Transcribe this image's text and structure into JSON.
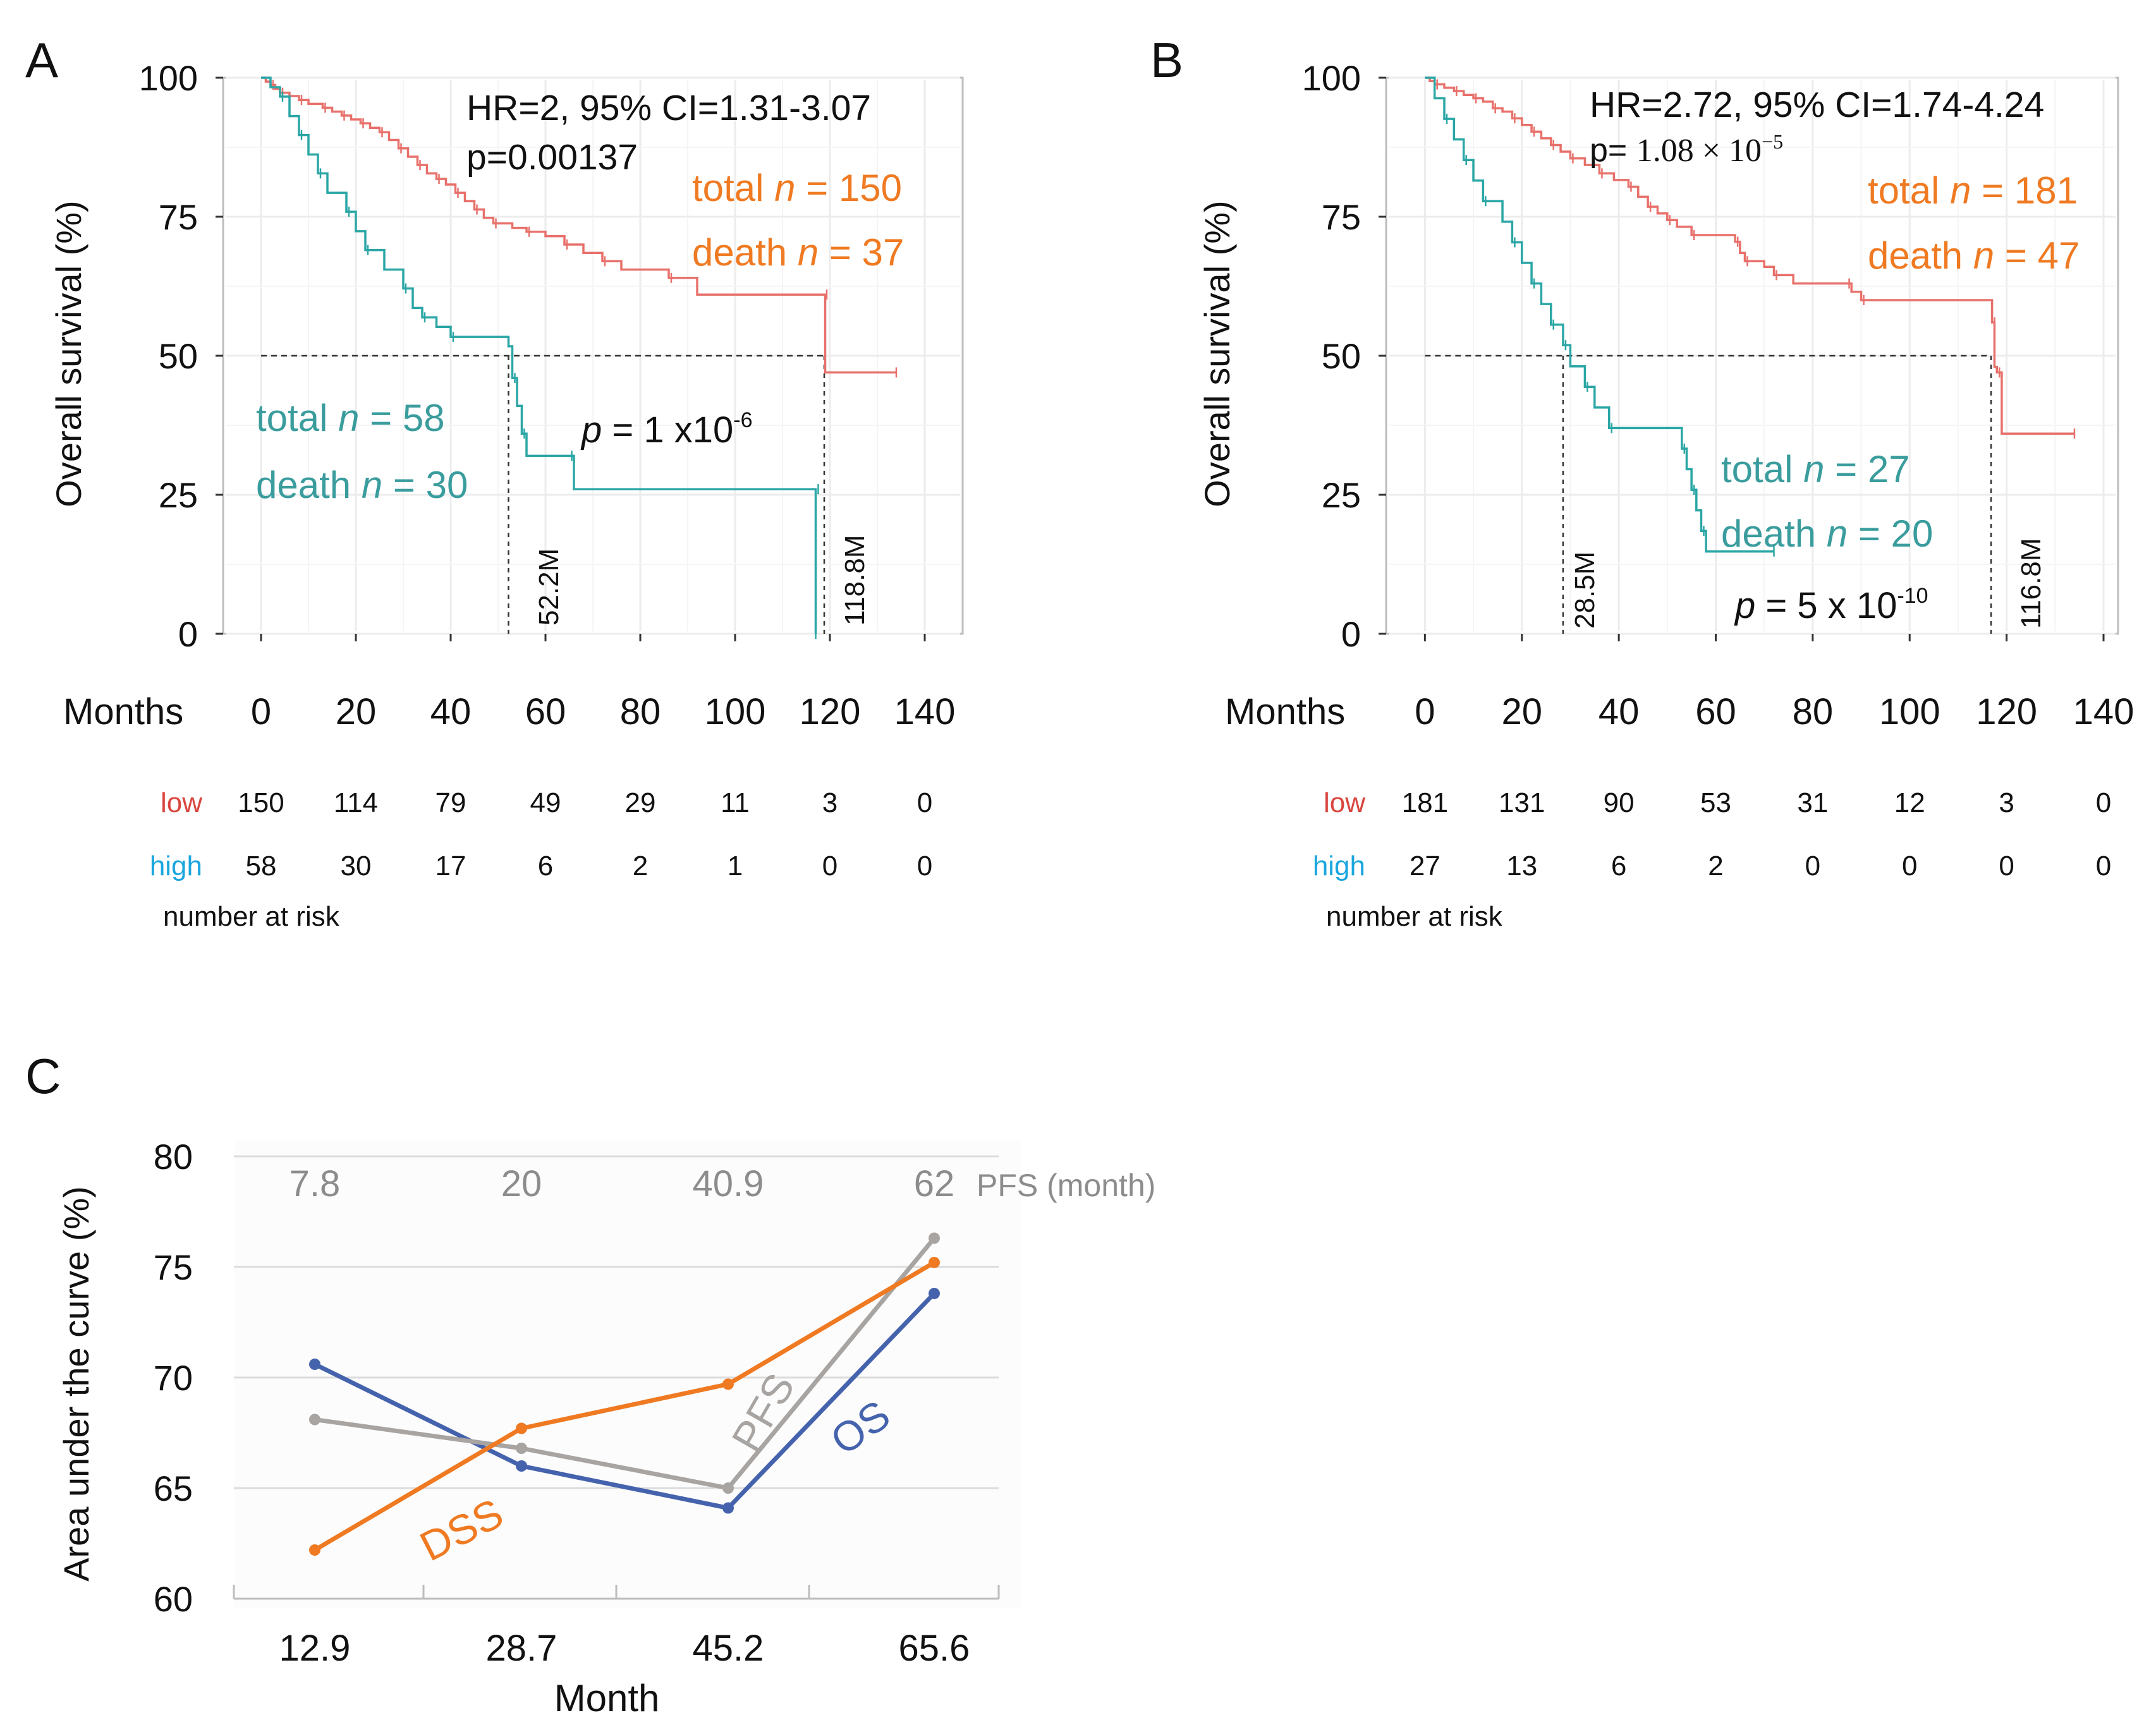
{
  "colors": {
    "low_curve": "#e8706b",
    "high_curve": "#2aa6a5",
    "low_label": "#d9453f",
    "high_label": "#1aa6de",
    "orange_text": "#ef7a22",
    "teal_text": "#3a9c9d",
    "ds_orange": "#ef7a22",
    "os_blue": "#4563ad",
    "pfs_gray": "#a8a4a2",
    "gray_text": "#8c8c8c"
  },
  "chart_data": [
    {
      "type": "line",
      "panel": "A",
      "panel_label": "A",
      "title": "",
      "xlabel": "Months",
      "ylabel": "Overall survival (%)",
      "xlim": [
        -8,
        148
      ],
      "ylim": [
        0,
        100
      ],
      "x_ticks": [
        "0",
        "20",
        "40",
        "60",
        "80",
        "100",
        "120",
        "140"
      ],
      "y_ticks": [
        "0",
        "25",
        "50",
        "75",
        "100"
      ],
      "annotations": {
        "hr": "HR=2, 95% CI=1.31-3.07",
        "p_logrank": "p=0.00137",
        "low_total_pre": "total ",
        "low_total_n": "n",
        "low_total_post": " = 150",
        "low_death_pre": "death ",
        "low_death_n": "n",
        "low_death_post": " = 37",
        "high_total_pre": "total ",
        "high_total_n": "n",
        "high_total_post": " = 58",
        "high_death_pre": "death ",
        "high_death_n": "n",
        "high_death_post": " = 30",
        "p_sym": "p",
        "p_eq": " = 1 x10",
        "p_exp": "-6",
        "median_high": "52.2M",
        "median_low": "118.8M"
      },
      "medians": [
        52.2,
        118.8
      ],
      "series": [
        {
          "name": "low",
          "color_key": "low_curve",
          "points": [
            [
              0,
              100
            ],
            [
              1,
              99.3
            ],
            [
              2,
              98.7
            ],
            [
              3,
              98
            ],
            [
              4,
              97.3
            ],
            [
              6,
              96.7
            ],
            [
              8,
              96
            ],
            [
              10,
              95.3
            ],
            [
              13,
              94.6
            ],
            [
              15,
              93.9
            ],
            [
              17,
              93.2
            ],
            [
              19,
              92.5
            ],
            [
              21,
              91.8
            ],
            [
              23,
              91
            ],
            [
              25,
              90.2
            ],
            [
              27,
              88.8
            ],
            [
              29,
              87.3
            ],
            [
              31,
              85.8
            ],
            [
              33,
              84.3
            ],
            [
              35,
              82.8
            ],
            [
              37,
              81.8
            ],
            [
              39,
              80.8
            ],
            [
              41,
              79.3
            ],
            [
              43,
              77.8
            ],
            [
              45,
              76.3
            ],
            [
              47,
              74.8
            ],
            [
              49,
              73.8
            ],
            [
              53,
              73
            ],
            [
              56,
              72.3
            ],
            [
              60,
              71.5
            ],
            [
              64,
              70
            ],
            [
              68,
              68.5
            ],
            [
              72,
              67
            ],
            [
              76,
              65.5
            ],
            [
              86,
              64
            ],
            [
              92,
              61
            ],
            [
              118.8,
              61
            ],
            [
              119,
              47
            ],
            [
              134,
              47
            ]
          ]
        },
        {
          "name": "high",
          "color_key": "high_curve",
          "points": [
            [
              0,
              100
            ],
            [
              2,
              98.3
            ],
            [
              4,
              96.6
            ],
            [
              6,
              93.1
            ],
            [
              8,
              89.7
            ],
            [
              10,
              86.2
            ],
            [
              12,
              82.8
            ],
            [
              14,
              79.3
            ],
            [
              18,
              75.9
            ],
            [
              20,
              72.4
            ],
            [
              22,
              69
            ],
            [
              26,
              65.5
            ],
            [
              30,
              62.1
            ],
            [
              32,
              58.6
            ],
            [
              34,
              56.9
            ],
            [
              37,
              55.2
            ],
            [
              40,
              53.4
            ],
            [
              52.2,
              51.7
            ],
            [
              53,
              46
            ],
            [
              54,
              41
            ],
            [
              55,
              36
            ],
            [
              56,
              32
            ],
            [
              65,
              32
            ],
            [
              66,
              26
            ],
            [
              117,
              26
            ],
            [
              117,
              0
            ]
          ]
        }
      ],
      "risk_table": {
        "label_low": "low",
        "label_high": "high",
        "footer": "number at risk",
        "low": [
          "150",
          "114",
          "79",
          "49",
          "29",
          "11",
          "3",
          "0"
        ],
        "high": [
          "58",
          "30",
          "17",
          "6",
          "2",
          "1",
          "0",
          "0"
        ]
      }
    },
    {
      "type": "line",
      "panel": "B",
      "panel_label": "B",
      "title": "",
      "xlabel": "Months",
      "ylabel": "Overall survival (%)",
      "xlim": [
        -8,
        143
      ],
      "ylim": [
        0,
        100
      ],
      "x_ticks": [
        "0",
        "20",
        "40",
        "60",
        "80",
        "100",
        "120",
        "140"
      ],
      "y_ticks": [
        "0",
        "25",
        "50",
        "75",
        "100"
      ],
      "annotations": {
        "hr": "HR=2.72, 95% CI=1.74-4.24",
        "p_prefix": "p= ",
        "p_value": "1.08 × 10",
        "p_exp": "−5",
        "low_total_pre": "total ",
        "low_total_n": "n",
        "low_total_post": " = 181",
        "low_death_pre": "death ",
        "low_death_n": "n",
        "low_death_post": " = 47",
        "high_total_pre": "total ",
        "high_total_n": "n",
        "high_total_post": " = 27",
        "high_death_pre": "death ",
        "high_death_n": "n",
        "high_death_post": " = 20",
        "p_sym": "p",
        "p_eq": " = 5 x 10",
        "p_exp2": "-10",
        "median_high": "28.5M",
        "median_low": "116.8M"
      },
      "medians": [
        28.5,
        116.8
      ],
      "series": [
        {
          "name": "low",
          "color_key": "low_curve",
          "points": [
            [
              0,
              100
            ],
            [
              1,
              99.4
            ],
            [
              2,
              98.8
            ],
            [
              4,
              98.2
            ],
            [
              6,
              97.6
            ],
            [
              8,
              96.9
            ],
            [
              10,
              96.3
            ],
            [
              12,
              95.7
            ],
            [
              14,
              94.5
            ],
            [
              16,
              93.9
            ],
            [
              18,
              92.7
            ],
            [
              20,
              91.5
            ],
            [
              22,
              90.3
            ],
            [
              24,
              89.1
            ],
            [
              26,
              87.9
            ],
            [
              28,
              86.7
            ],
            [
              30,
              85.5
            ],
            [
              33,
              84.3
            ],
            [
              36,
              82.8
            ],
            [
              39,
              81.6
            ],
            [
              42,
              80.4
            ],
            [
              44,
              78.6
            ],
            [
              46,
              76.8
            ],
            [
              48,
              75.6
            ],
            [
              50,
              74.4
            ],
            [
              52,
              73.2
            ],
            [
              55,
              71.7
            ],
            [
              63,
              71.7
            ],
            [
              64,
              70.5
            ],
            [
              65,
              68.5
            ],
            [
              66,
              67
            ],
            [
              70,
              66
            ],
            [
              72,
              64.5
            ],
            [
              76,
              63
            ],
            [
              87,
              63
            ],
            [
              88,
              61.5
            ],
            [
              90,
              60
            ],
            [
              116,
              60
            ],
            [
              117,
              56
            ],
            [
              117.5,
              48
            ],
            [
              118,
              47
            ],
            [
              119,
              36
            ],
            [
              134,
              36
            ]
          ]
        },
        {
          "name": "high",
          "color_key": "high_curve",
          "points": [
            [
              0,
              100
            ],
            [
              2,
              96.3
            ],
            [
              4,
              92.6
            ],
            [
              6,
              88.9
            ],
            [
              8,
              85.2
            ],
            [
              10,
              81.5
            ],
            [
              12,
              77.8
            ],
            [
              16,
              74.1
            ],
            [
              18,
              70.4
            ],
            [
              20,
              66.7
            ],
            [
              22,
              63
            ],
            [
              24,
              59.3
            ],
            [
              26,
              55.6
            ],
            [
              28,
              55.6
            ],
            [
              28.5,
              51.9
            ],
            [
              30,
              48.1
            ],
            [
              33,
              44.4
            ],
            [
              35,
              40.7
            ],
            [
              38,
              37
            ],
            [
              52,
              37
            ],
            [
              53,
              33.3
            ],
            [
              54,
              29.6
            ],
            [
              55,
              25.9
            ],
            [
              56,
              22.2
            ],
            [
              57,
              18.5
            ],
            [
              58,
              14.8
            ],
            [
              72,
              14.8
            ]
          ]
        }
      ],
      "risk_table": {
        "label_low": "low",
        "label_high": "high",
        "footer": "number at risk",
        "low": [
          "181",
          "131",
          "90",
          "53",
          "31",
          "12",
          "3",
          "0"
        ],
        "high": [
          "27",
          "13",
          "6",
          "2",
          "0",
          "0",
          "0",
          "0"
        ]
      }
    },
    {
      "type": "line",
      "panel": "C",
      "panel_label": "C",
      "title": "",
      "xlabel": "Month",
      "ylabel": "Area under the curve (%)",
      "categories": [
        "12.9",
        "28.7",
        "45.2",
        "65.6"
      ],
      "top_categories": [
        "7.8",
        "20",
        "40.9",
        "62"
      ],
      "top_axis_label": "PFS (month)",
      "ylim": [
        60,
        80
      ],
      "y_ticks": [
        "60",
        "65",
        "70",
        "75",
        "80"
      ],
      "grid": true,
      "series": [
        {
          "name": "OS",
          "label": "OS",
          "color_key": "os_blue",
          "values": [
            70.6,
            66.0,
            64.1,
            73.8
          ]
        },
        {
          "name": "PFS",
          "label": "PFS",
          "color_key": "pfs_gray",
          "values": [
            68.1,
            66.8,
            65.0,
            76.3
          ]
        },
        {
          "name": "DSS",
          "label": "DSS",
          "color_key": "ds_orange",
          "values": [
            62.2,
            67.7,
            69.7,
            75.2
          ]
        }
      ]
    }
  ]
}
